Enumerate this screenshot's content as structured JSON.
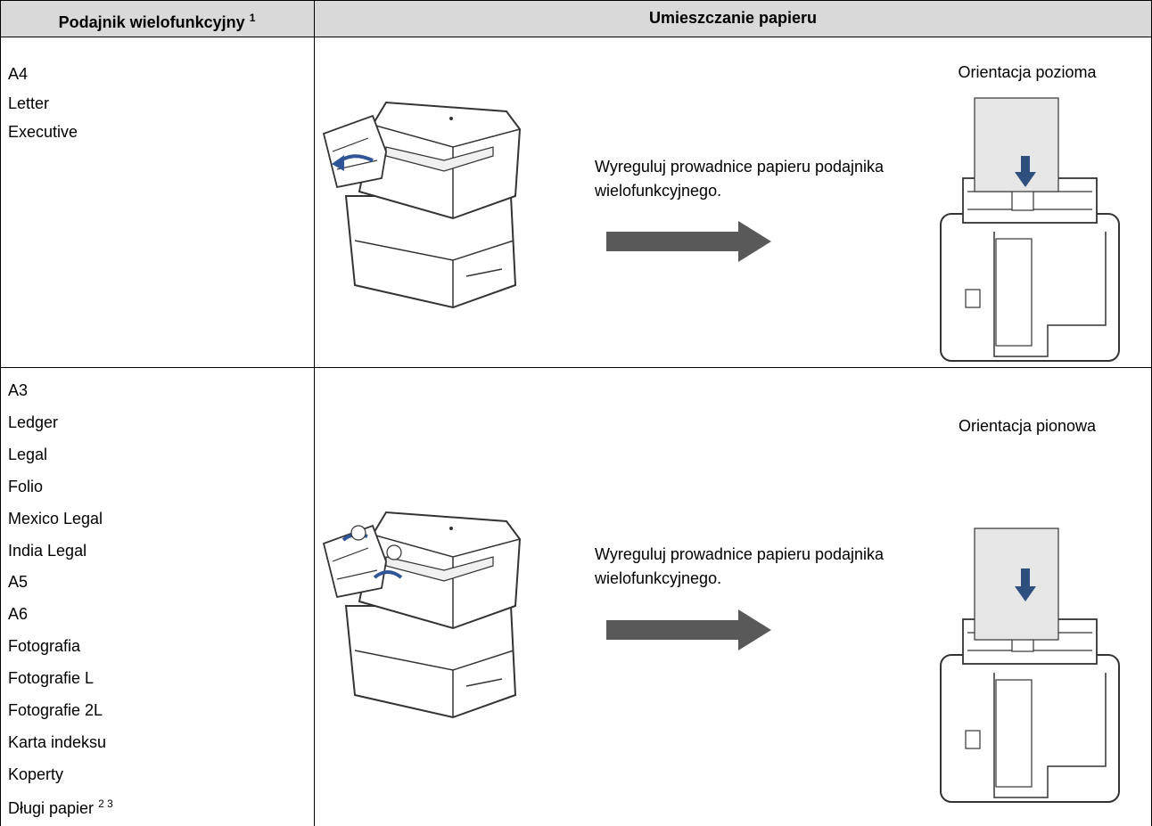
{
  "header": {
    "col1": "Podajnik wielofunkcyjny",
    "col1_note": "1",
    "col2": "Umieszczanie papieru"
  },
  "rows": [
    {
      "sizes": [
        "A4",
        "Letter",
        "Executive"
      ],
      "instruction": "Wyreguluj prowadnice papieru podajnika wielofunkcyjnego.",
      "orientation": "Orientacja pozioma"
    },
    {
      "sizes": [
        "A3",
        "Ledger",
        "Legal",
        "Folio",
        "Mexico Legal",
        "India Legal",
        "A5",
        "A6",
        "Fotografia",
        "Fotografie L",
        "Fotografie 2L",
        "Karta indeksu",
        "Koperty",
        "Długi papier"
      ],
      "last_size_note": "2 3",
      "instruction": "Wyreguluj prowadnice papieru podajnika wielofunkcyjnego.",
      "orientation": "Orientacja pionowa"
    }
  ]
}
